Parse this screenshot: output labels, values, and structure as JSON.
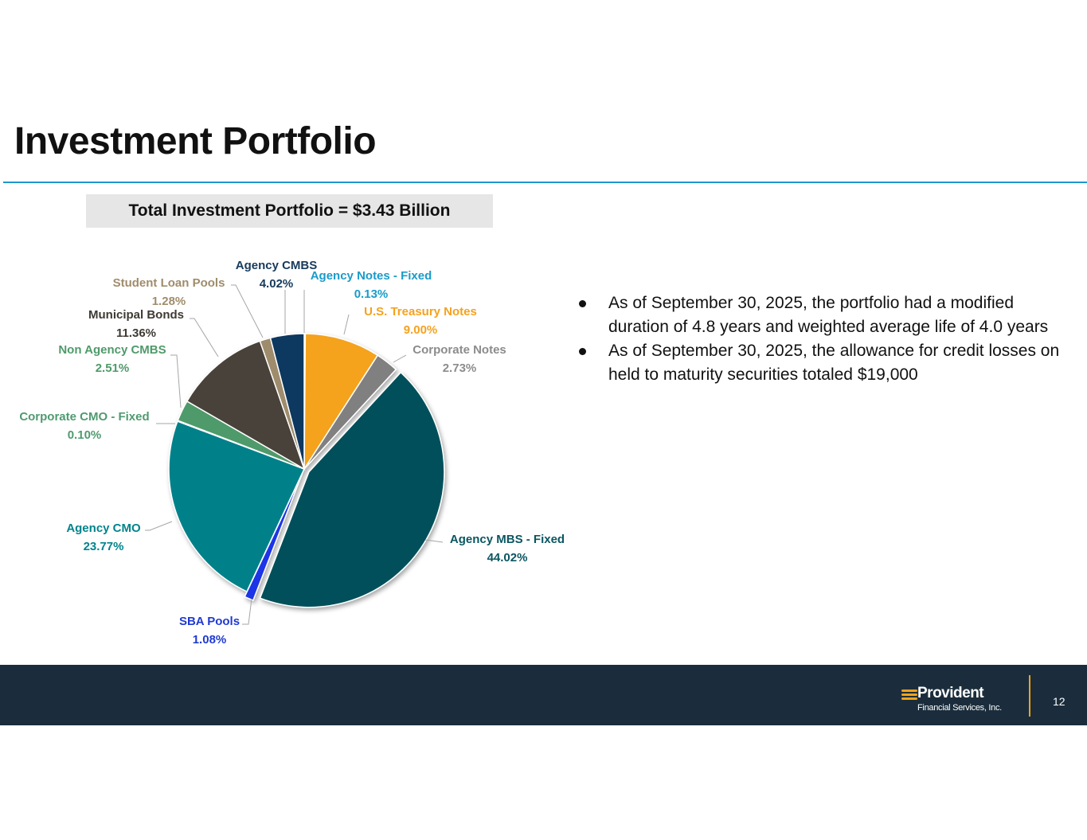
{
  "title": "Investment Portfolio",
  "total_box": "Total Investment Portfolio = $3.43 Billion",
  "bullets": [
    "As of September 30, 2025, the portfolio had a modified duration of 4.8 years and weighted average life of 4.0 years",
    "As of September 30, 2025, the allowance for credit losses on held to maturity securities totaled $19,000"
  ],
  "footer": {
    "logo_name": "Provident",
    "logo_sub": "Financial Services, Inc.",
    "page_number": "12"
  },
  "chart_data": {
    "type": "pie",
    "title": "Total Investment Portfolio = $3.43 Billion",
    "start": "12 o'clock, clockwise",
    "slices": [
      {
        "name": "Agency Notes - Fixed",
        "value": 0.13,
        "label": "0.13%",
        "color": "#1a9bc9",
        "text_color": "#1a9bc9"
      },
      {
        "name": "U.S. Treasury Notes",
        "value": 9.0,
        "label": "9.00%",
        "color": "#f5a21e",
        "text_color": "#f5a21e"
      },
      {
        "name": "Corporate Notes",
        "value": 2.73,
        "label": "2.73%",
        "color": "#808080",
        "text_color": "#8c8c8c"
      },
      {
        "name": "Agency MBS - Fixed",
        "value": 44.02,
        "label": "44.02%",
        "color": "#02505a",
        "text_color": "#0b5661"
      },
      {
        "name": "SBA Pools",
        "value": 1.08,
        "label": "1.08%",
        "color": "#1a35e6",
        "text_color": "#1f3ad1"
      },
      {
        "name": "Agency CMO",
        "value": 23.77,
        "label": "23.77%",
        "color": "#00818a",
        "text_color": "#00848c"
      },
      {
        "name": "Corporate CMO - Fixed",
        "value": 0.1,
        "label": "0.10%",
        "color": "#4a9a70",
        "text_color": "#4f9a70"
      },
      {
        "name": "Non Agency CMBS",
        "value": 2.51,
        "label": "2.51%",
        "color": "#4f9a6a",
        "text_color": "#4f9a6a"
      },
      {
        "name": "Municipal Bonds",
        "value": 11.36,
        "label": "11.36%",
        "color": "#4a423a",
        "text_color": "#3e3a34"
      },
      {
        "name": "Student Loan Pools",
        "value": 1.28,
        "label": "1.28%",
        "color": "#9e8c6c",
        "text_color": "#a08c6c"
      },
      {
        "name": "Agency CMBS",
        "value": 4.02,
        "label": "4.02%",
        "color": "#10385e",
        "text_color": "#173a5c"
      }
    ]
  }
}
